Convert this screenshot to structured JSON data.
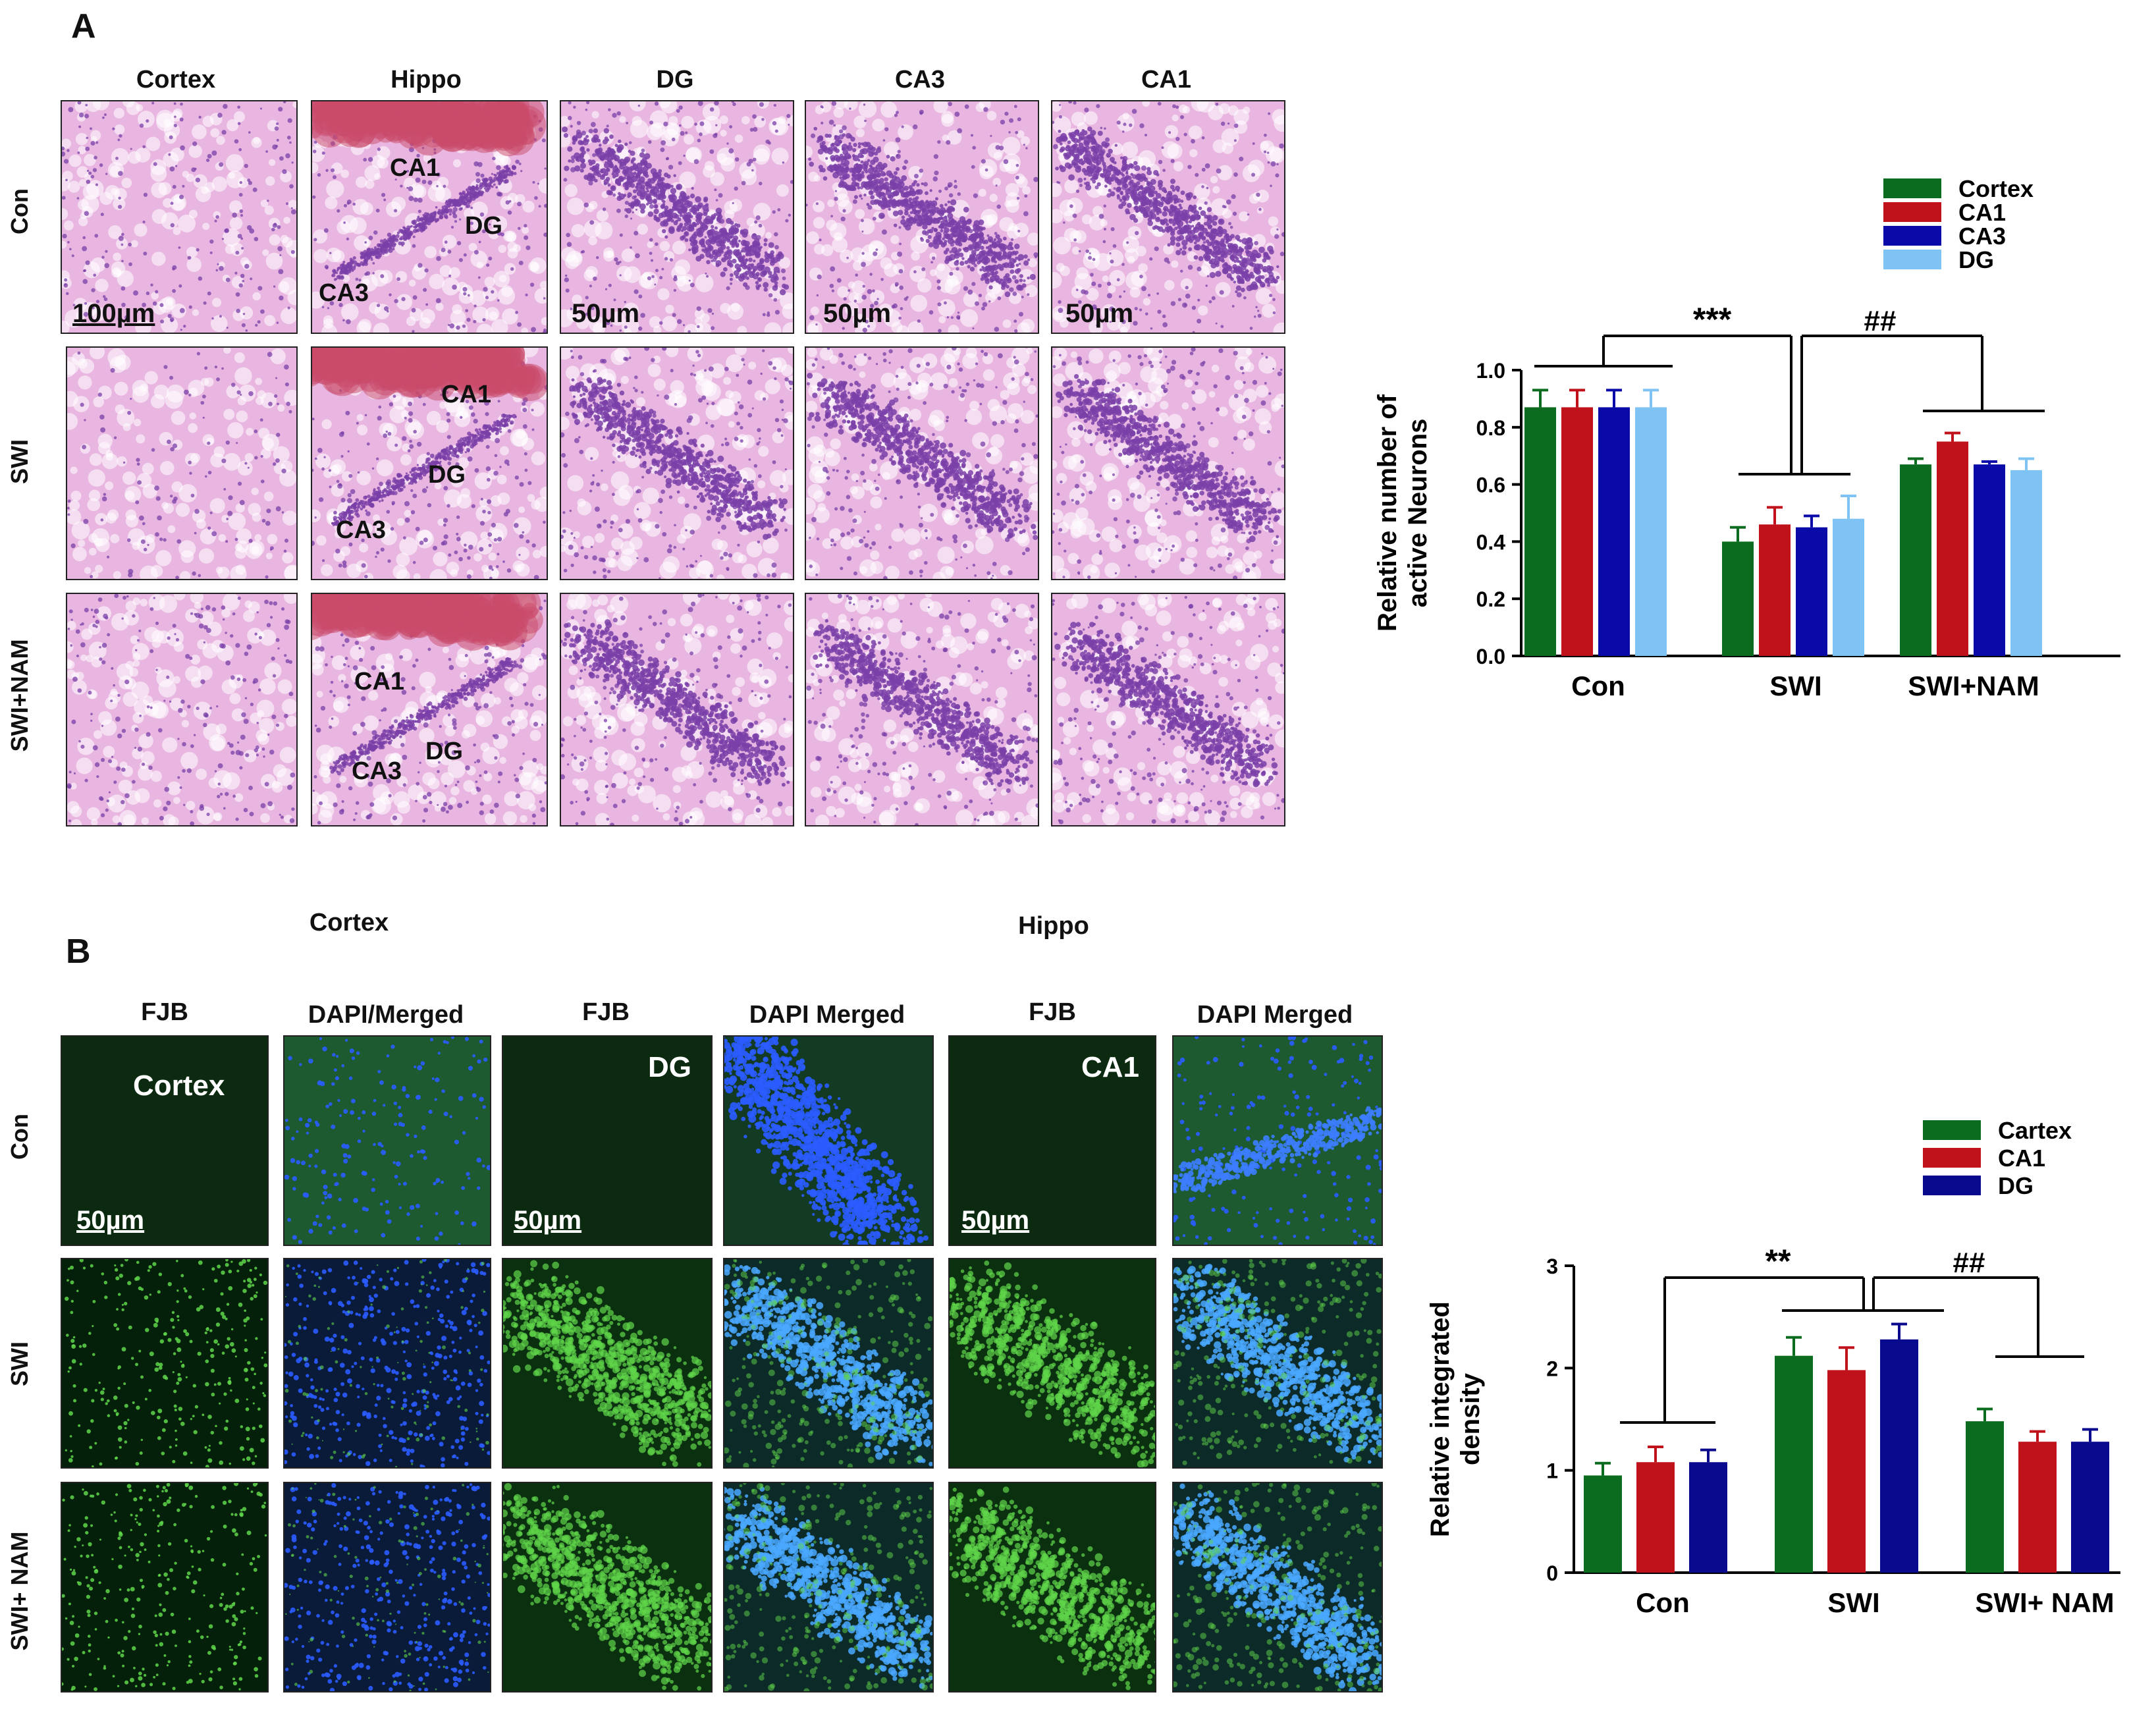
{
  "panelA": {
    "letter": "A",
    "columns": [
      "Cortex",
      "Hippo",
      "DG",
      "CA3",
      "CA1"
    ],
    "rows": [
      "Con",
      "SWI",
      "SWI+NAM"
    ],
    "overlays": {
      "scale_100": "100µm",
      "scale_50": "50µm",
      "ca1": "CA1",
      "dg": "DG",
      "ca3": "CA3"
    },
    "colors": {
      "he_bg": "#e8b6e0",
      "he_stain": "#7a3fa8",
      "he_hippo_red": "#c94a6a"
    }
  },
  "panelB": {
    "letter": "B",
    "groups": [
      "Cortex",
      "Hippo"
    ],
    "columns": [
      "FJB",
      "DAPI/Merged",
      "FJB",
      "DAPI Merged",
      "FJB",
      "DAPI Merged"
    ],
    "rows": [
      "Con",
      "SWI",
      "SWI+ NAM"
    ],
    "overlays": {
      "cortex": "Cortex",
      "dg": "DG",
      "ca1": "CA1",
      "scale_50": "50µm"
    },
    "colors": {
      "fjb_dark": "#0c2a10",
      "fjb_bright": "#5fd64a",
      "dapi": "#2a5cff"
    }
  },
  "chart_data": [
    {
      "type": "bar",
      "ylabel": "Relative number of active Neurons",
      "xlabel": "",
      "categories": [
        "Con",
        "SWI",
        "SWI+NAM"
      ],
      "ylim": [
        0.0,
        1.0
      ],
      "yticks": [
        "0.0",
        "0.2",
        "0.4",
        "0.6",
        "0.8",
        "1.0"
      ],
      "legend_position": "top-right",
      "series": [
        {
          "name": "Cortex",
          "color": "#0b6b1e",
          "values": [
            0.87,
            0.4,
            0.67
          ],
          "errors": [
            0.06,
            0.05,
            0.02
          ]
        },
        {
          "name": "CA1",
          "color": "#c0121a",
          "values": [
            0.87,
            0.46,
            0.75
          ],
          "errors": [
            0.06,
            0.06,
            0.03
          ]
        },
        {
          "name": "CA3",
          "color": "#0a0aa8",
          "values": [
            0.87,
            0.45,
            0.67
          ],
          "errors": [
            0.06,
            0.04,
            0.01
          ]
        },
        {
          "name": "DG",
          "color": "#7ec3f3",
          "values": [
            0.87,
            0.48,
            0.65
          ],
          "errors": [
            0.06,
            0.08,
            0.04
          ]
        }
      ],
      "significance": [
        "***",
        "##"
      ]
    },
    {
      "type": "bar",
      "ylabel": "Relative integrated density",
      "xlabel": "",
      "categories": [
        "Con",
        "SWI",
        "SWI+ NAM"
      ],
      "ylim": [
        0,
        3
      ],
      "yticks": [
        "0",
        "1",
        "2",
        "3"
      ],
      "legend_position": "top-right",
      "series": [
        {
          "name": "Cartex",
          "color": "#0b6b1e",
          "values": [
            0.95,
            2.12,
            1.48
          ],
          "errors": [
            0.12,
            0.18,
            0.12
          ]
        },
        {
          "name": "CA1",
          "color": "#c0121a",
          "values": [
            1.08,
            1.98,
            1.28
          ],
          "errors": [
            0.15,
            0.22,
            0.1
          ]
        },
        {
          "name": "DG",
          "color": "#0a0a8f",
          "values": [
            1.08,
            2.28,
            1.28
          ],
          "errors": [
            0.12,
            0.15,
            0.12
          ]
        }
      ],
      "significance": [
        "**",
        "##"
      ]
    }
  ]
}
